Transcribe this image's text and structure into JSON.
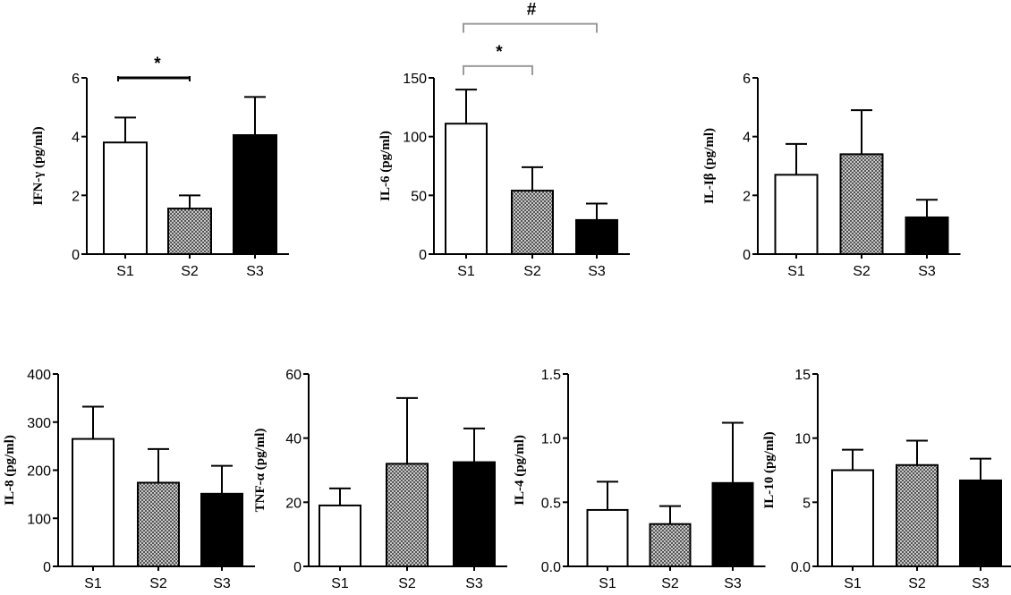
{
  "chart_data": [
    {
      "type": "bar",
      "ylabel": "IFN-γ (pg/ml)",
      "categories": [
        "S1",
        "S2",
        "S3"
      ],
      "values": [
        3.8,
        1.55,
        4.05
      ],
      "errors": [
        0.85,
        0.45,
        1.3
      ],
      "ylim": [
        0,
        6
      ],
      "yticks": [
        0,
        2,
        4,
        6
      ],
      "ytick_labels": [
        "0",
        "2",
        "4",
        "6"
      ],
      "annotations": [
        {
          "from": 0,
          "to": 1,
          "label": "*",
          "level": 6.0,
          "style": "bar"
        }
      ]
    },
    {
      "type": "bar",
      "ylabel": "IL-6 (pg/ml)",
      "categories": [
        "S1",
        "S2",
        "S3"
      ],
      "values": [
        111,
        54,
        29
      ],
      "errors": [
        29,
        20,
        14
      ],
      "ylim": [
        0,
        150
      ],
      "yticks": [
        0,
        50,
        100,
        150
      ],
      "ytick_labels": [
        "0",
        "50",
        "100",
        "150"
      ],
      "annotations": [
        {
          "from": 0,
          "to": 1,
          "label": "*",
          "level": 160,
          "style": "bracket"
        },
        {
          "from": 0,
          "to": 2,
          "label": "#",
          "level": 196,
          "style": "bracket"
        }
      ]
    },
    {
      "type": "bar",
      "ylabel": "IL-Iβ (pg/ml)",
      "categories": [
        "S1",
        "S2",
        "S3"
      ],
      "values": [
        2.7,
        3.4,
        1.25
      ],
      "errors": [
        1.05,
        1.5,
        0.6
      ],
      "ylim": [
        0,
        6
      ],
      "yticks": [
        0,
        2,
        4,
        6
      ],
      "ytick_labels": [
        "0",
        "2",
        "4",
        "6"
      ],
      "annotations": []
    },
    {
      "type": "bar",
      "ylabel": "IL-8 (pg/ml)",
      "categories": [
        "S1",
        "S2",
        "S3"
      ],
      "values": [
        265,
        174,
        151
      ],
      "errors": [
        67,
        70,
        58
      ],
      "ylim": [
        0,
        400
      ],
      "yticks": [
        0,
        100,
        200,
        300,
        400
      ],
      "ytick_labels": [
        "0",
        "100",
        "200",
        "300",
        "400"
      ],
      "annotations": []
    },
    {
      "type": "bar",
      "ylabel": "TNF-α (pg/ml)",
      "categories": [
        "S1",
        "S2",
        "S3"
      ],
      "values": [
        19,
        32,
        32.5
      ],
      "errors": [
        5.3,
        20.5,
        10.5
      ],
      "ylim": [
        0,
        60
      ],
      "yticks": [
        0,
        20,
        40,
        60
      ],
      "ytick_labels": [
        "0",
        "20",
        "40",
        "60"
      ],
      "annotations": []
    },
    {
      "type": "bar",
      "ylabel": "IL-4 (pg/ml)",
      "categories": [
        "S1",
        "S2",
        "S3"
      ],
      "values": [
        0.44,
        0.33,
        0.65
      ],
      "errors": [
        0.22,
        0.14,
        0.47
      ],
      "ylim": [
        0,
        1.5
      ],
      "yticks": [
        0,
        0.5,
        1.0,
        1.5
      ],
      "ytick_labels": [
        "0.0",
        "0.5",
        "1.0",
        "1.5"
      ],
      "annotations": []
    },
    {
      "type": "bar",
      "ylabel": "IL-10 (pg/ml)",
      "categories": [
        "S1",
        "S2",
        "S3"
      ],
      "values": [
        7.5,
        7.9,
        6.7
      ],
      "errors": [
        1.6,
        1.9,
        1.7
      ],
      "ylim": [
        0,
        15
      ],
      "yticks": [
        0,
        5,
        10,
        15
      ],
      "ytick_labels": [
        "0.0",
        "5",
        "10",
        "15"
      ],
      "annotations": []
    }
  ],
  "bar_styles": [
    {
      "fill": "#ffffff",
      "pattern": "none"
    },
    {
      "fill": "#9a9a9a",
      "pattern": "checker"
    },
    {
      "fill": "#000000",
      "pattern": "none"
    }
  ],
  "colors": {
    "axis": "#000000",
    "significance_bracket": "#9a9a9a",
    "checker_dark": "#555555",
    "checker_light": "#c8c8c8"
  }
}
